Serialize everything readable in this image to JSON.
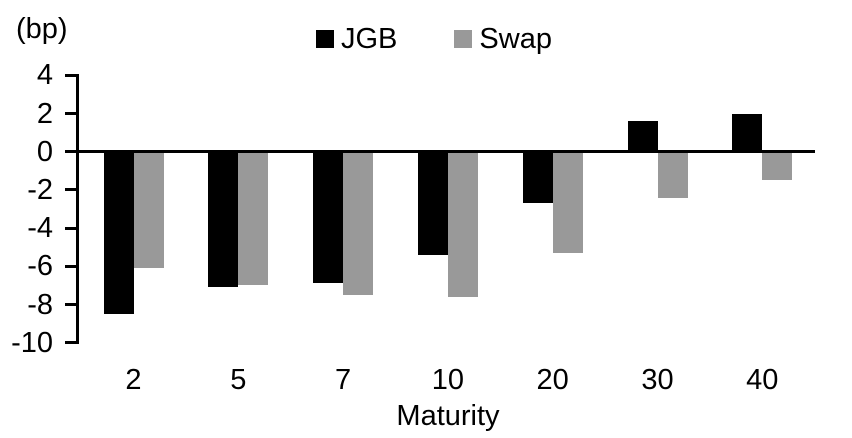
{
  "chart_data": {
    "type": "bar",
    "title": "",
    "unit_label": "(bp)",
    "xlabel": "Maturity",
    "ylabel": "",
    "categories": [
      "2",
      "5",
      "7",
      "10",
      "20",
      "30",
      "40"
    ],
    "series": [
      {
        "name": "JGB",
        "color": "#000000",
        "values": [
          -8.5,
          -7.1,
          -6.9,
          -5.4,
          -2.7,
          1.6,
          2.0
        ]
      },
      {
        "name": "Swap",
        "color": "#999999",
        "values": [
          -6.1,
          -7.0,
          -7.5,
          -7.6,
          -5.3,
          -2.4,
          -1.5
        ]
      }
    ],
    "y_ticks": [
      4,
      2,
      0,
      -2,
      -4,
      -6,
      -8,
      -10
    ],
    "ylim": [
      -10,
      4
    ],
    "legend_position": "top",
    "grid": false,
    "axis_color": "#000000",
    "background_color": "#ffffff"
  }
}
